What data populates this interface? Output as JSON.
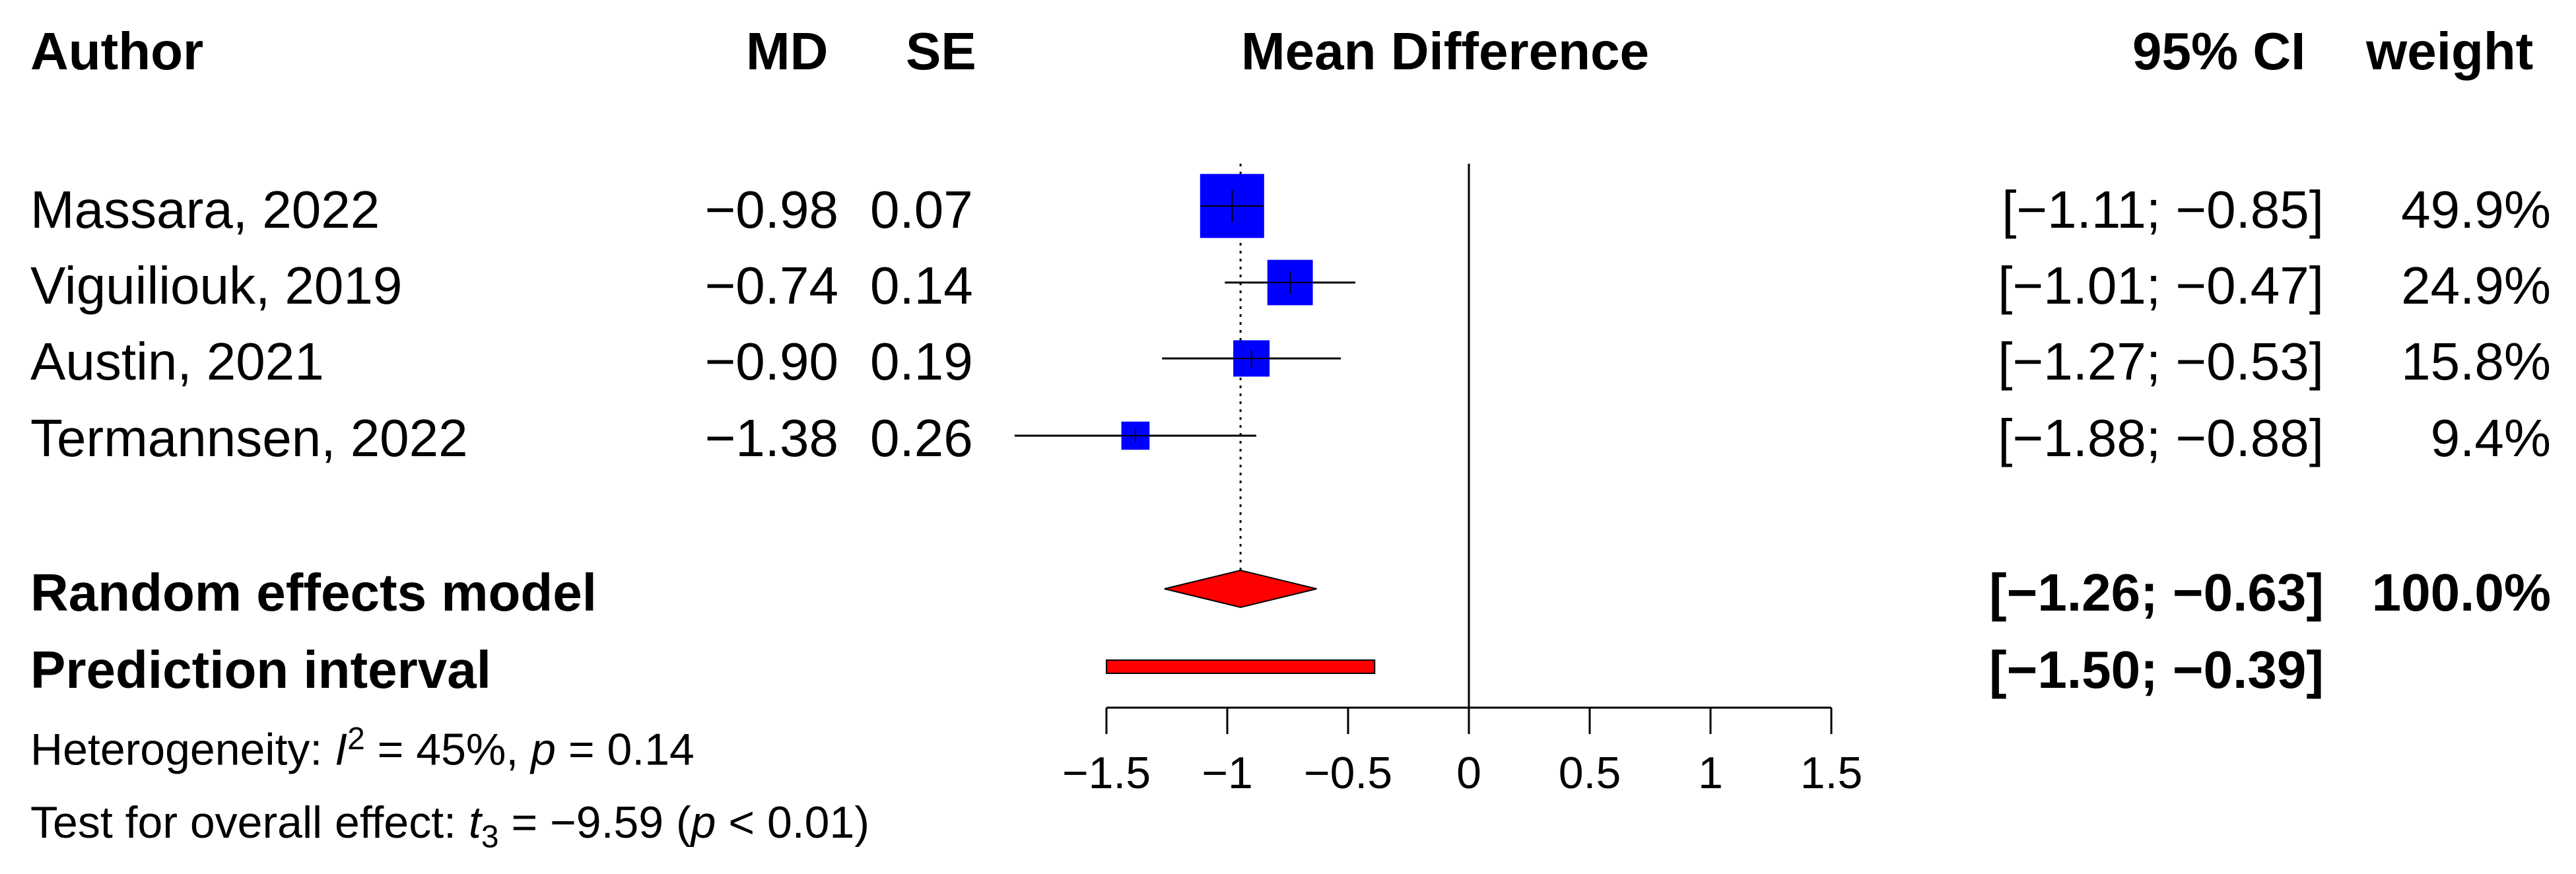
{
  "columns": {
    "author": "Author",
    "md": "MD",
    "se": "SE",
    "mean_difference": "Mean Difference",
    "ci": "95% CI",
    "weight": "weight"
  },
  "studies": [
    {
      "author": "Massara, 2022",
      "md_text": "−0.98",
      "se_text": "0.07",
      "ci_text": "[−1.11; −0.85]",
      "weight_text": "49.9%",
      "md": -0.98,
      "lower": -1.11,
      "upper": -0.85,
      "weight": 49.9
    },
    {
      "author": "Viguiliouk, 2019",
      "md_text": "−0.74",
      "se_text": "0.14",
      "ci_text": "[−1.01; −0.47]",
      "weight_text": "24.9%",
      "md": -0.74,
      "lower": -1.01,
      "upper": -0.47,
      "weight": 24.9
    },
    {
      "author": "Austin, 2021",
      "md_text": "−0.90",
      "se_text": "0.19",
      "ci_text": "[−1.27; −0.53]",
      "weight_text": "15.8%",
      "md": -0.9,
      "lower": -1.27,
      "upper": -0.53,
      "weight": 15.8
    },
    {
      "author": "Termannsen, 2022",
      "md_text": "−1.38",
      "se_text": "0.26",
      "ci_text": "[−1.88; −0.88]",
      "weight_text": "9.4%",
      "md": -1.38,
      "lower": -1.88,
      "upper": -0.88,
      "weight": 9.4
    }
  ],
  "random_effects": {
    "label": "Random effects model",
    "ci_text": "[−1.26; −0.63]",
    "weight_text": "100.0%",
    "estimate": -0.945,
    "lower": -1.26,
    "upper": -0.63
  },
  "prediction_interval": {
    "label": "Prediction interval",
    "ci_text": "[−1.50; −0.39]",
    "lower": -1.5,
    "upper": -0.39
  },
  "heterogeneity": {
    "prefix": "Heterogeneity: ",
    "i_symbol": "I",
    "i_sup": "2",
    "i_value": " = 45%, ",
    "p_symbol": "p",
    "p_value": " = 0.14"
  },
  "overall_effect": {
    "prefix": "Test for overall effect: ",
    "t_symbol": "t",
    "t_sub": "3",
    "t_value": " = −9.59 (",
    "p_symbol": "p",
    "p_value": " < 0.01)"
  },
  "colors": {
    "study_box": "#0000ff",
    "summary": "#ff0000"
  },
  "chart_data": {
    "type": "forest",
    "title": "Mean Difference",
    "xlim": [
      -1.5,
      1.5
    ],
    "ticks": [
      -1.5,
      -1,
      -0.5,
      0,
      0.5,
      1,
      1.5
    ],
    "tick_labels": [
      "−1.5",
      "−1",
      "−0.5",
      "0",
      "0.5",
      "1",
      "1.5"
    ],
    "reference_line": 0,
    "summary_line": -0.945
  }
}
